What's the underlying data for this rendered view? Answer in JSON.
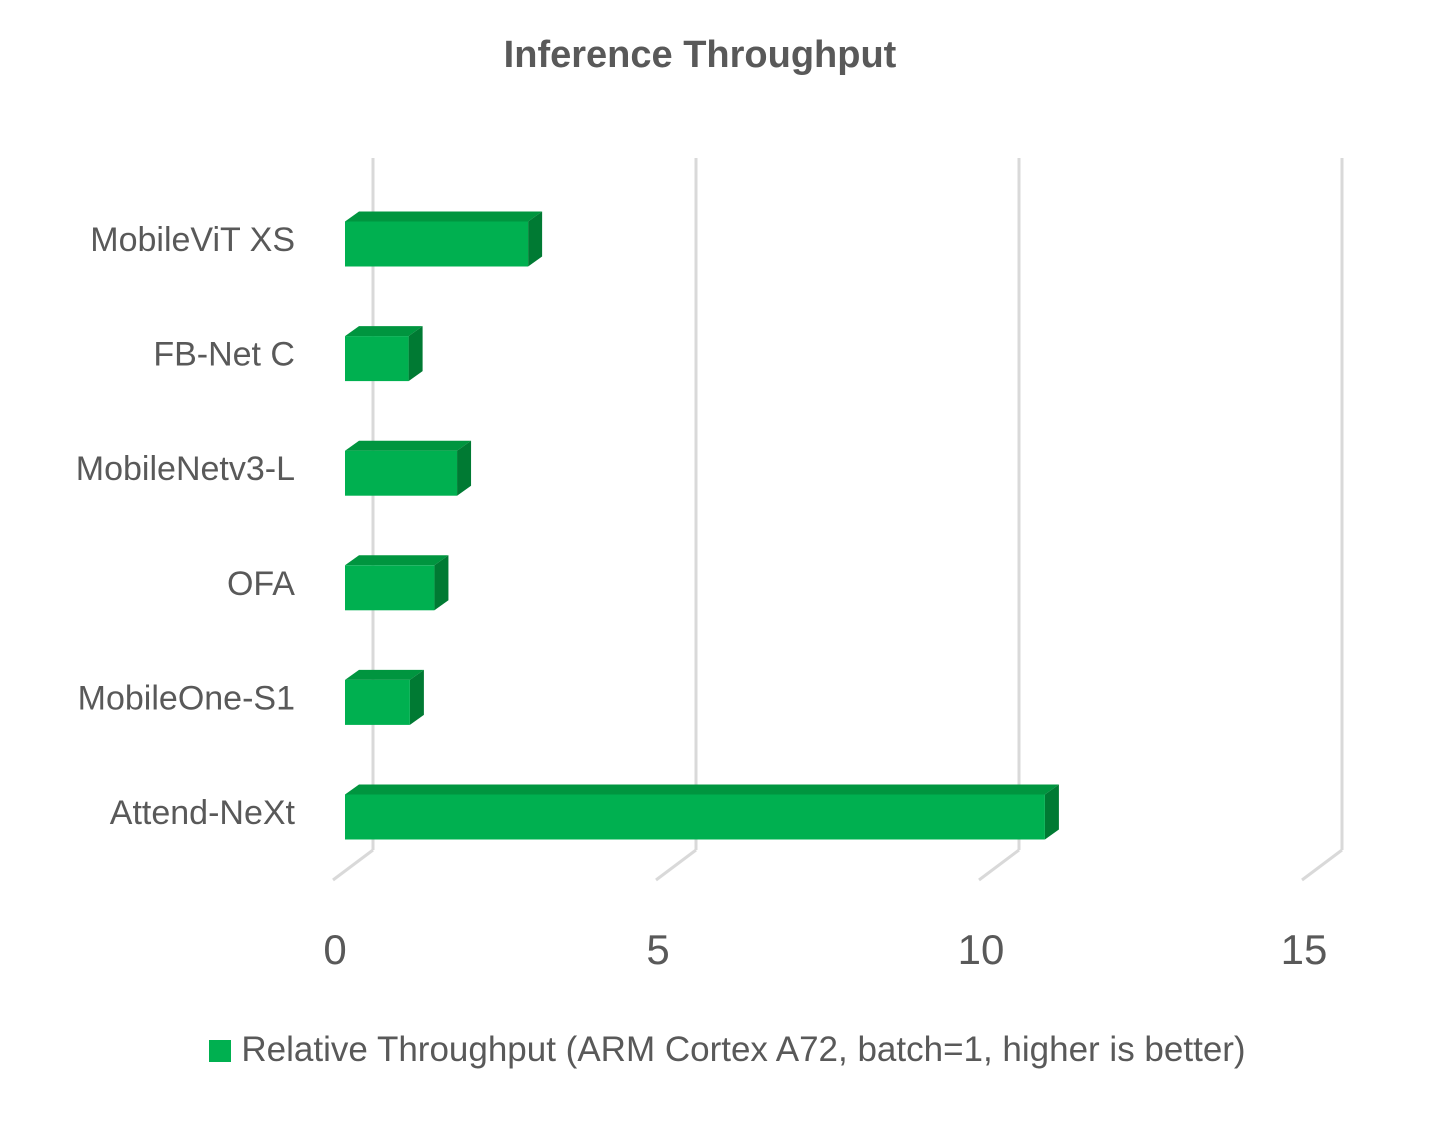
{
  "chart_data": {
    "type": "bar",
    "orientation": "horizontal",
    "style": "3d",
    "title": "Inference Throughput",
    "categories": [
      "MobileViT XS",
      "FB-Net C",
      "MobileNetv3-L",
      "OFA",
      "MobileOne-S1",
      "Attend-NeXt"
    ],
    "series": [
      {
        "name": "Relative Throughput (ARM Cortex A72, batch=1, higher is better)",
        "values": [
          2.85,
          1.0,
          1.75,
          1.4,
          1.02,
          10.85
        ]
      }
    ],
    "xlim": [
      0,
      15
    ],
    "xticks": [
      0,
      5,
      10,
      15
    ],
    "grid": true,
    "legend_position": "bottom",
    "colors": {
      "bar_front": "#00b050",
      "bar_top": "#00953f",
      "bar_side": "#007a33",
      "grid": "#d9d9d9",
      "text": "#595959"
    }
  }
}
